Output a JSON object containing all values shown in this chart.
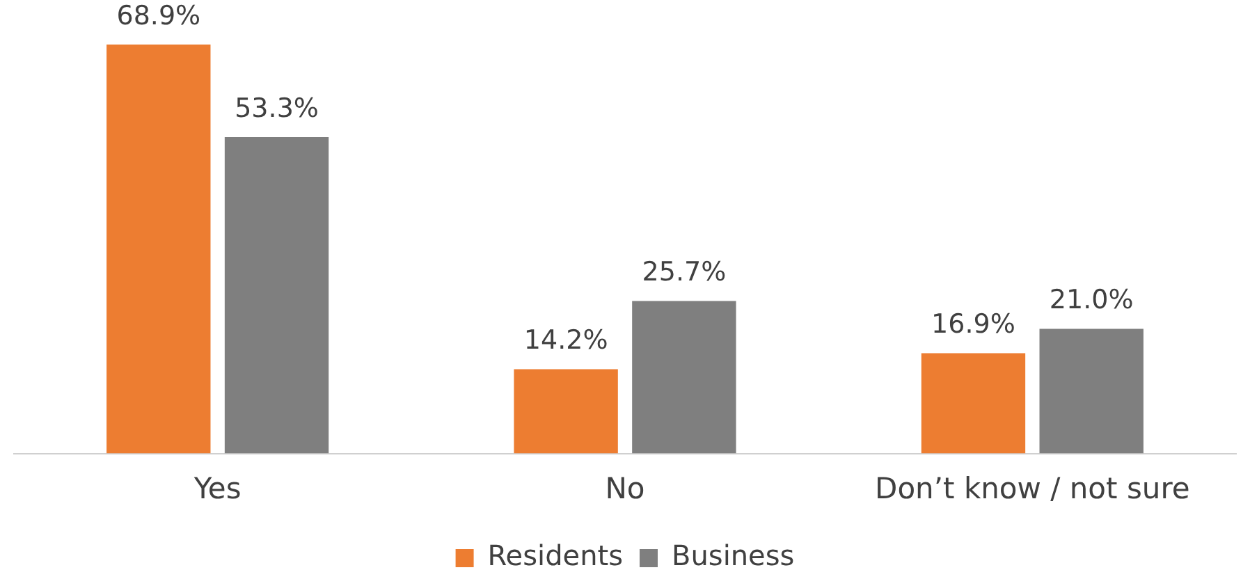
{
  "chart_data": {
    "type": "bar",
    "categories": [
      "Yes",
      "No",
      "Don’t know / not sure"
    ],
    "series": [
      {
        "name": "Residents",
        "color": "#ed7d31",
        "values": [
          68.9,
          14.2,
          16.9
        ],
        "value_labels": [
          "68.9%",
          "14.2%",
          "16.9%"
        ]
      },
      {
        "name": "Business",
        "color": "#7f7f7f",
        "values": [
          53.3,
          25.7,
          21.0
        ],
        "value_labels": [
          "53.3%",
          "25.7%",
          "21.0%"
        ]
      }
    ],
    "legend": "bottom",
    "grid": false,
    "tick_labels": "x"
  }
}
